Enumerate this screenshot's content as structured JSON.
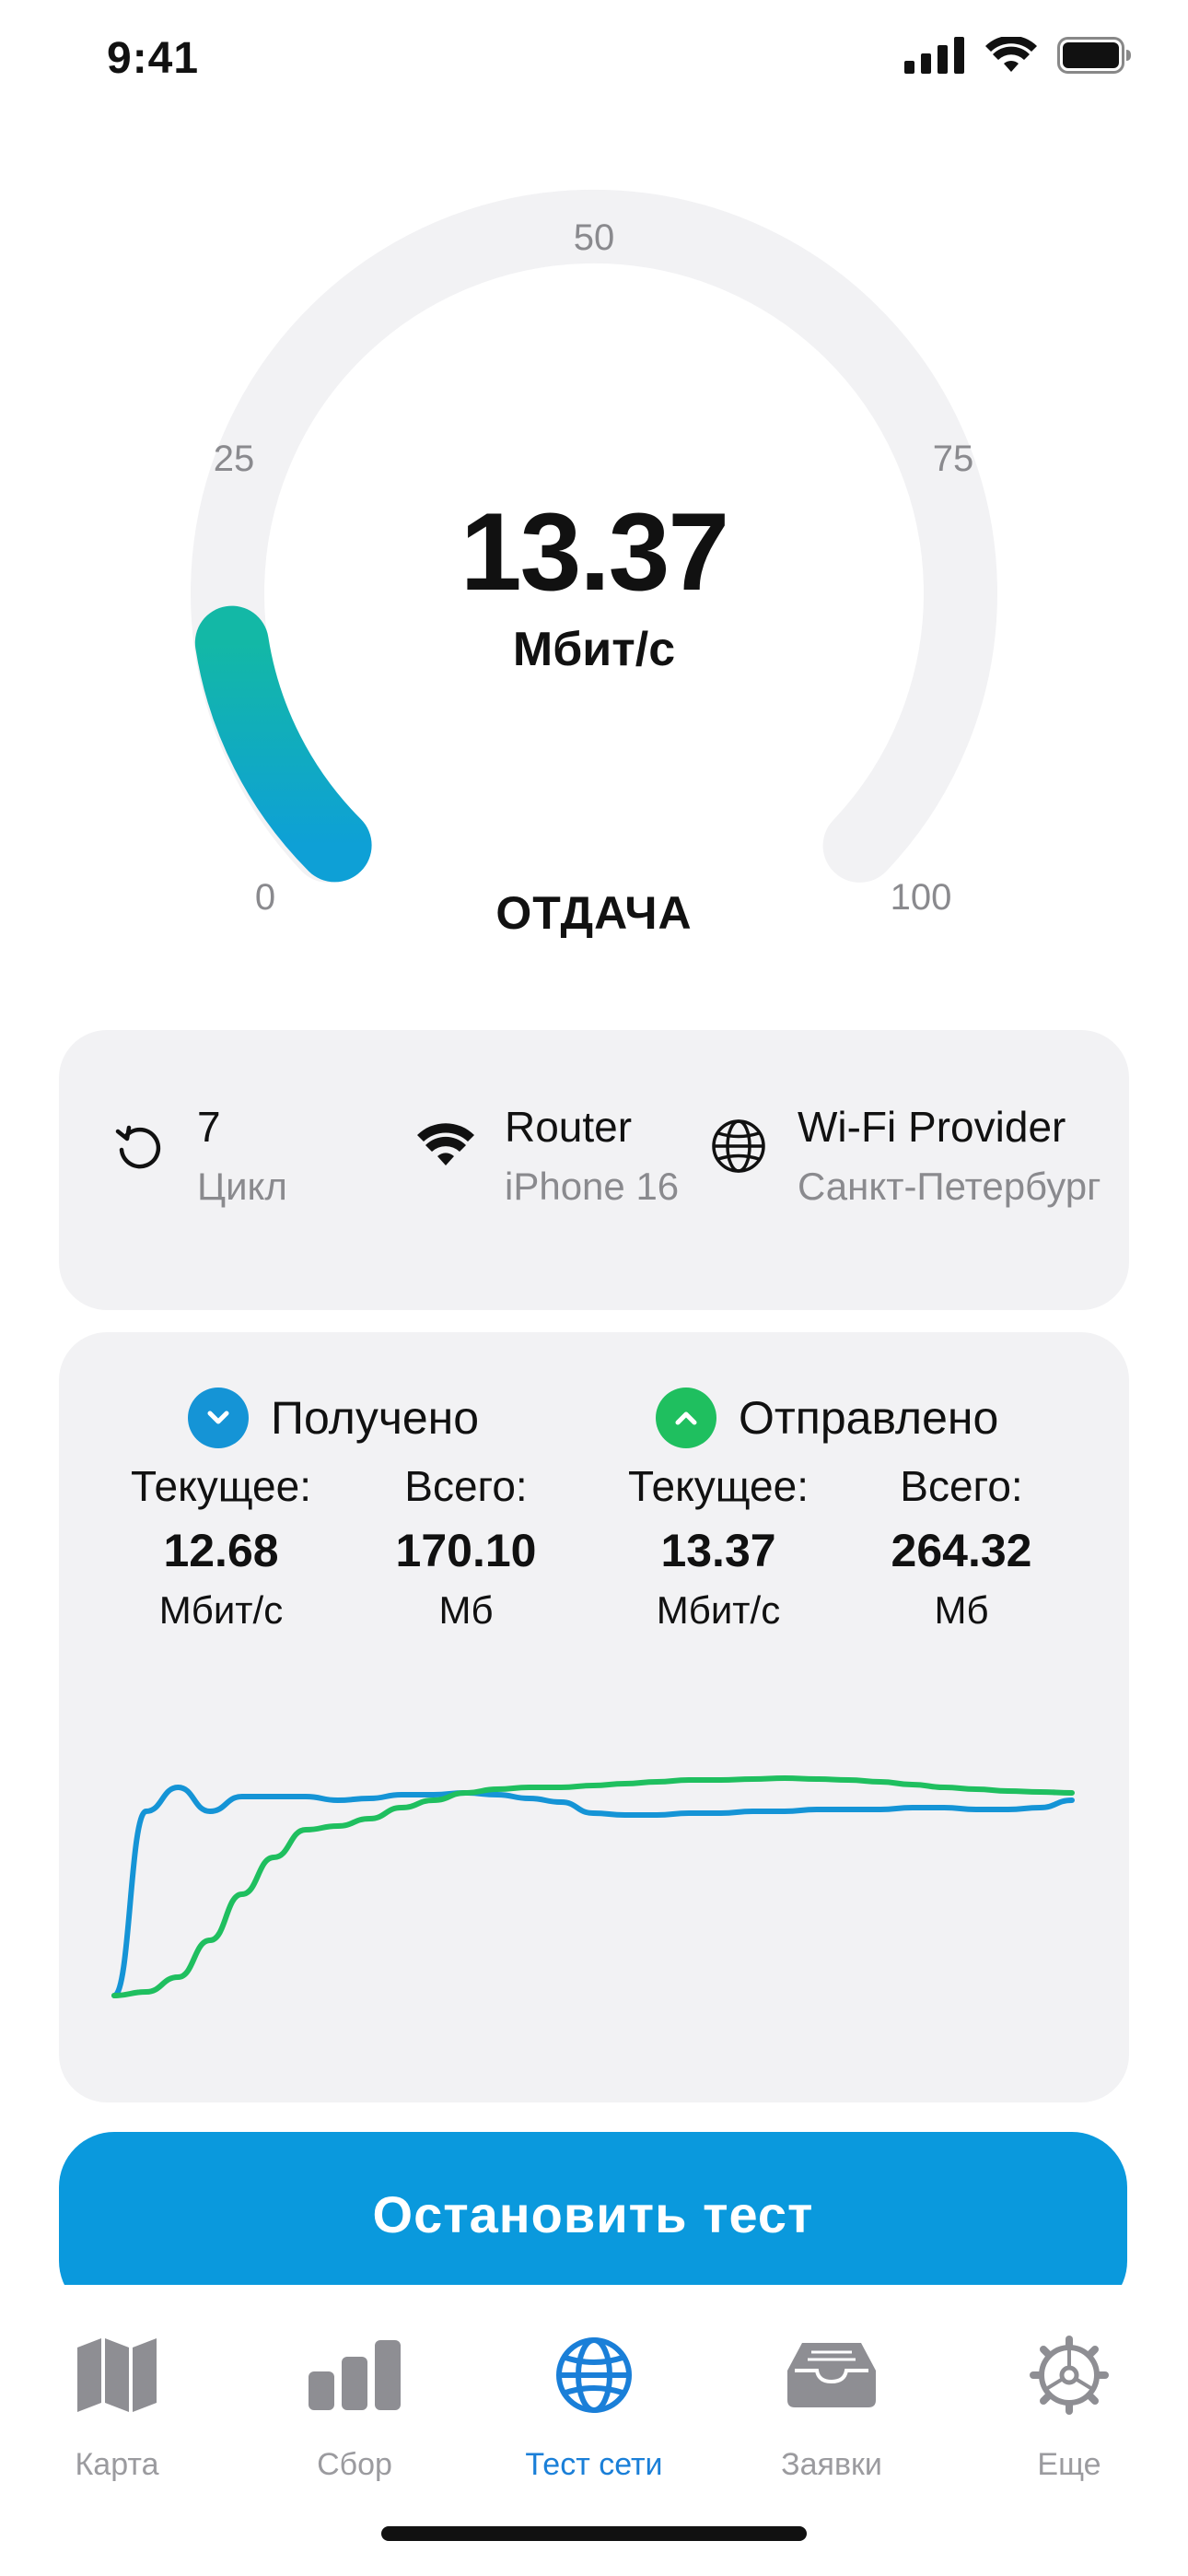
{
  "status_bar": {
    "time": "9:41"
  },
  "gauge": {
    "value": "13.37",
    "unit": "Мбит/с",
    "mode": "ОТДАЧА",
    "ticks": [
      "0",
      "25",
      "50",
      "75",
      "100"
    ],
    "max": 100,
    "level": 13.37
  },
  "info": {
    "cycle": {
      "value": "7",
      "label": "Цикл",
      "icon": "refresh-icon"
    },
    "router": {
      "title": "Router",
      "subtitle": "iPhone 16",
      "icon": "wifi-icon"
    },
    "provider": {
      "title": "Wi-Fi Provider",
      "subtitle": "Санкт-Петербург",
      "icon": "globe-icon"
    }
  },
  "stats": {
    "received": {
      "label": "Получено",
      "current_label": "Текущее:",
      "current_value": "12.68",
      "current_unit": "Мбит/с",
      "total_label": "Всего:",
      "total_value": "170.10",
      "total_unit": "Мб",
      "color": "#1594d6"
    },
    "sent": {
      "label": "Отправлено",
      "current_label": "Текущее:",
      "current_value": "13.37",
      "current_unit": "Мбит/с",
      "total_label": "Всего:",
      "total_value": "264.32",
      "total_unit": "Мб",
      "color": "#1fbf5f"
    }
  },
  "chart_data": {
    "type": "line",
    "x": [
      0,
      1,
      2,
      3,
      4,
      5,
      6,
      7,
      8,
      9,
      10,
      11,
      12,
      13,
      14,
      15,
      16,
      17,
      18,
      19,
      20,
      21,
      22,
      23,
      24,
      25,
      26,
      27,
      28,
      29,
      30
    ],
    "series": [
      {
        "values": [
          2,
          12,
          13.3,
          12,
          12.8,
          12.8,
          12.8,
          12.6,
          12.7,
          12.9,
          12.9,
          13,
          12.9,
          12.7,
          12.5,
          11.9,
          11.8,
          11.8,
          11.9,
          11.9,
          12,
          12,
          12.1,
          12.1,
          12.1,
          12.2,
          12.2,
          12.1,
          12.1,
          12.2,
          12.6
        ]
      },
      {
        "values": [
          2,
          2.2,
          3,
          5,
          7.5,
          9.5,
          11,
          11.2,
          11.6,
          12.2,
          12.6,
          13,
          13.2,
          13.3,
          13.3,
          13.4,
          13.5,
          13.6,
          13.7,
          13.7,
          13.75,
          13.8,
          13.75,
          13.7,
          13.6,
          13.45,
          13.3,
          13.2,
          13.1,
          13.05,
          13.0
        ]
      }
    ],
    "ylim": [
      0,
      18
    ],
    "colors": [
      "#1594d6",
      "#1fbf5f"
    ]
  },
  "actions": {
    "stop_label": "Остановить тест"
  },
  "tabs": [
    {
      "label": "Карта",
      "icon": "map-icon",
      "active": false
    },
    {
      "label": "Сбор",
      "icon": "bar-chart-icon",
      "active": false
    },
    {
      "label": "Тест сети",
      "icon": "globe-icon",
      "active": true
    },
    {
      "label": "Заявки",
      "icon": "inbox-icon",
      "active": false
    },
    {
      "label": "Еще",
      "icon": "gear-icon",
      "active": false
    }
  ]
}
